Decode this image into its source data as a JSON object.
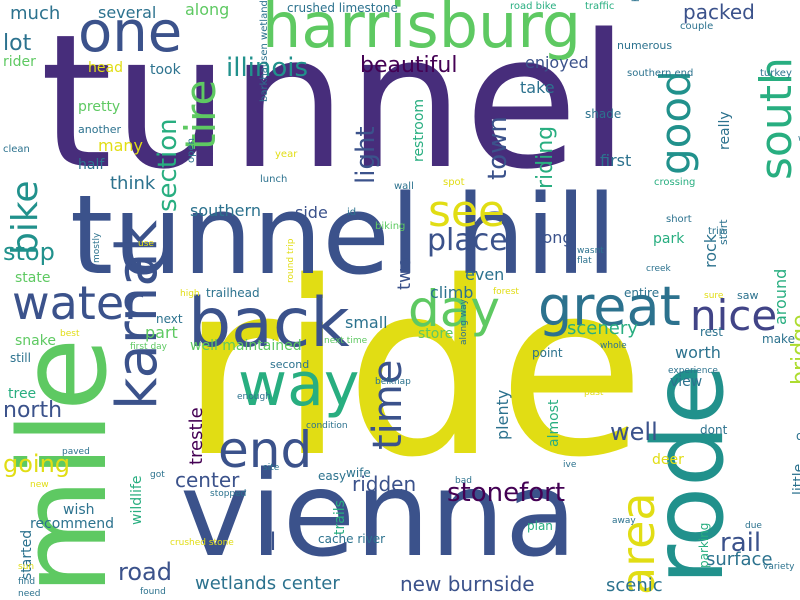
{
  "palette": {
    "dark_purple": "#472d7b",
    "indigo": "#3b528b",
    "slate_blue": "#2c728e",
    "teal": "#21918c",
    "green": "#28ae80",
    "light_green": "#5ec962",
    "yellow_green": "#addc30",
    "yellow": "#e1dd14",
    "navy": "#414487",
    "deep_purple": "#440154"
  },
  "words": [
    {
      "text": "tunnel",
      "color": "dark_purple",
      "rotated": false
    },
    {
      "text": "ride",
      "color": "yellow",
      "rotated": false
    },
    {
      "text": "vienna",
      "color": "indigo",
      "rotated": false
    },
    {
      "text": "mile",
      "color": "light_green",
      "rotated": true
    },
    {
      "text": "tunnel hill",
      "color": "indigo",
      "rotated": false
    },
    {
      "text": "rode",
      "color": "teal",
      "rotated": true
    },
    {
      "text": "harrisburg",
      "color": "light_green",
      "rotated": false
    },
    {
      "text": "karnak",
      "color": "indigo",
      "rotated": true
    },
    {
      "text": "back",
      "color": "indigo",
      "rotated": false
    },
    {
      "text": "one",
      "color": "indigo",
      "rotated": false
    },
    {
      "text": "way",
      "color": "green",
      "rotated": false
    },
    {
      "text": "end",
      "color": "indigo",
      "rotated": false
    },
    {
      "text": "water",
      "color": "indigo",
      "rotated": false
    },
    {
      "text": "great",
      "color": "slate_blue",
      "rotated": false
    },
    {
      "text": "day",
      "color": "light_green",
      "rotated": false
    },
    {
      "text": "see",
      "color": "yellow",
      "rotated": false
    },
    {
      "text": "time",
      "color": "indigo",
      "rotated": true
    },
    {
      "text": "south",
      "color": "green",
      "rotated": true
    },
    {
      "text": "good",
      "color": "teal",
      "rotated": true
    },
    {
      "text": "area",
      "color": "yellow",
      "rotated": true
    },
    {
      "text": "nice",
      "color": "navy",
      "rotated": false
    },
    {
      "text": "tire",
      "color": "light_green",
      "rotated": true
    },
    {
      "text": "bike",
      "color": "teal",
      "rotated": true
    },
    {
      "text": "place",
      "color": "indigo",
      "rotated": false
    },
    {
      "text": "illinois",
      "color": "teal",
      "rotated": false
    },
    {
      "text": "beautiful",
      "color": "deep_purple",
      "rotated": false
    },
    {
      "text": "packed",
      "color": "indigo",
      "rotated": false
    },
    {
      "text": "stonefort",
      "color": "deep_purple",
      "rotated": false
    },
    {
      "text": "rail",
      "color": "indigo",
      "rotated": false
    },
    {
      "text": "road",
      "color": "indigo",
      "rotated": false
    },
    {
      "text": "going",
      "color": "yellow",
      "rotated": false
    },
    {
      "text": "well",
      "color": "indigo",
      "rotated": false
    },
    {
      "text": "stop",
      "color": "teal",
      "rotated": false
    },
    {
      "text": "north",
      "color": "indigo",
      "rotated": false
    },
    {
      "text": "new burnside",
      "color": "indigo",
      "rotated": false
    },
    {
      "text": "wetlands center",
      "color": "slate_blue",
      "rotated": false
    },
    {
      "text": "center",
      "color": "indigo",
      "rotated": false
    },
    {
      "text": "ridden",
      "color": "indigo",
      "rotated": false
    },
    {
      "text": "town",
      "color": "indigo",
      "rotated": true
    },
    {
      "text": "section",
      "color": "green",
      "rotated": true
    },
    {
      "text": "light",
      "color": "indigo",
      "rotated": true
    },
    {
      "text": "bridge",
      "color": "yellow_green",
      "rotated": true
    },
    {
      "text": "lot",
      "color": "slate_blue",
      "rotated": false
    },
    {
      "text": "much",
      "color": "slate_blue",
      "rotated": false
    },
    {
      "text": "several",
      "color": "slate_blue",
      "rotated": false
    },
    {
      "text": "along",
      "color": "light_green",
      "rotated": false
    },
    {
      "text": "crushed limestone",
      "color": "slate_blue",
      "rotated": false
    },
    {
      "text": "road bike",
      "color": "green",
      "rotated": false
    },
    {
      "text": "traffic",
      "color": "green",
      "rotated": false
    },
    {
      "text": "rider",
      "color": "light_green",
      "rotated": false
    },
    {
      "text": "head",
      "color": "yellow",
      "rotated": false
    },
    {
      "text": "took",
      "color": "slate_blue",
      "rotated": false
    },
    {
      "text": "enjoyed",
      "color": "indigo",
      "rotated": false
    },
    {
      "text": "restroom",
      "color": "green",
      "rotated": true
    },
    {
      "text": "riding",
      "color": "green",
      "rotated": true
    },
    {
      "text": "take",
      "color": "slate_blue",
      "rotated": false
    },
    {
      "text": "shade",
      "color": "slate_blue",
      "rotated": false
    },
    {
      "text": "pretty",
      "color": "light_green",
      "rotated": false
    },
    {
      "text": "another",
      "color": "slate_blue",
      "rotated": false
    },
    {
      "text": "many",
      "color": "yellow",
      "rotated": false
    },
    {
      "text": "half",
      "color": "slate_blue",
      "rotated": false
    },
    {
      "text": "first",
      "color": "slate_blue",
      "rotated": false
    },
    {
      "text": "really",
      "color": "slate_blue",
      "rotated": true
    },
    {
      "text": "think",
      "color": "slate_blue",
      "rotated": false
    },
    {
      "text": "southern",
      "color": "slate_blue",
      "rotated": false
    },
    {
      "text": "side",
      "color": "indigo",
      "rotated": false
    },
    {
      "text": "long",
      "color": "indigo",
      "rotated": false
    },
    {
      "text": "two",
      "color": "indigo",
      "rotated": true
    },
    {
      "text": "climb",
      "color": "slate_blue",
      "rotated": false
    },
    {
      "text": "even",
      "color": "slate_blue",
      "rotated": false
    },
    {
      "text": "park",
      "color": "green",
      "rotated": false
    },
    {
      "text": "rock",
      "color": "slate_blue",
      "rotated": true
    },
    {
      "text": "around",
      "color": "green",
      "rotated": true
    },
    {
      "text": "state",
      "color": "light_green",
      "rotated": false
    },
    {
      "text": "small",
      "color": "slate_blue",
      "rotated": false
    },
    {
      "text": "part",
      "color": "light_green",
      "rotated": false
    },
    {
      "text": "scenery",
      "color": "green",
      "rotated": false
    },
    {
      "text": "snake",
      "color": "light_green",
      "rotated": false
    },
    {
      "text": "trestle",
      "color": "deep_purple",
      "rotated": true
    },
    {
      "text": "plenty",
      "color": "slate_blue",
      "rotated": true
    },
    {
      "text": "worth",
      "color": "slate_blue",
      "rotated": false
    },
    {
      "text": "view",
      "color": "slate_blue",
      "rotated": false
    },
    {
      "text": "tree",
      "color": "green",
      "rotated": false
    },
    {
      "text": "deer",
      "color": "yellow",
      "rotated": false
    },
    {
      "text": "little",
      "color": "slate_blue",
      "rotated": true
    },
    {
      "text": "il",
      "color": "indigo",
      "rotated": false
    },
    {
      "text": "surface",
      "color": "slate_blue",
      "rotated": false
    },
    {
      "text": "scenic",
      "color": "slate_blue",
      "rotated": false
    },
    {
      "text": "started",
      "color": "slate_blue",
      "rotated": true
    },
    {
      "text": "recommend",
      "color": "slate_blue",
      "rotated": false
    },
    {
      "text": "wish",
      "color": "slate_blue",
      "rotated": false
    },
    {
      "text": "wildlife",
      "color": "green",
      "rotated": true
    },
    {
      "text": "trails",
      "color": "green",
      "rotated": true
    },
    {
      "text": "almost",
      "color": "green",
      "rotated": true
    },
    {
      "text": "parking",
      "color": "green",
      "rotated": true
    },
    {
      "text": "store",
      "color": "light_green",
      "rotated": false
    },
    {
      "text": "well maintained",
      "color": "light_green",
      "rotated": false
    },
    {
      "text": "next",
      "color": "slate_blue",
      "rotated": false
    },
    {
      "text": "trailhead",
      "color": "slate_blue",
      "rotated": false
    },
    {
      "text": "still",
      "color": "slate_blue",
      "rotated": false
    },
    {
      "text": "second",
      "color": "slate_blue",
      "rotated": false
    },
    {
      "text": "wife",
      "color": "slate_blue",
      "rotated": false
    },
    {
      "text": "cache river",
      "color": "slate_blue",
      "rotated": false
    },
    {
      "text": "easy",
      "color": "slate_blue",
      "rotated": false
    },
    {
      "text": "plan",
      "color": "green",
      "rotated": false
    },
    {
      "text": "point",
      "color": "slate_blue",
      "rotated": false
    },
    {
      "text": "entire",
      "color": "slate_blue",
      "rotated": false
    },
    {
      "text": "make",
      "color": "slate_blue",
      "rotated": false
    },
    {
      "text": "rest",
      "color": "slate_blue",
      "rotated": false
    },
    {
      "text": "dont",
      "color": "slate_blue",
      "rotated": false
    },
    {
      "text": "old",
      "color": "slate_blue",
      "rotated": false
    },
    {
      "text": "start",
      "color": "slate_blue",
      "rotated": true
    },
    {
      "text": "saw",
      "color": "slate_blue",
      "rotated": false
    },
    {
      "text": "numerous",
      "color": "slate_blue",
      "rotated": false
    },
    {
      "text": "hour",
      "color": "slate_blue",
      "rotated": true
    },
    {
      "text": "couple",
      "color": "slate_blue",
      "rotated": false
    },
    {
      "text": "southern end",
      "color": "slate_blue",
      "rotated": false
    },
    {
      "text": "turkey",
      "color": "slate_blue",
      "rotated": false
    },
    {
      "text": "want",
      "color": "slate_blue",
      "rotated": false
    },
    {
      "text": "barkhausen wetlands",
      "color": "slate_blue",
      "rotated": true
    },
    {
      "text": "year",
      "color": "yellow",
      "rotated": false
    },
    {
      "text": "open",
      "color": "slate_blue",
      "rotated": true
    },
    {
      "text": "clean",
      "color": "slate_blue",
      "rotated": false
    },
    {
      "text": "lunch",
      "color": "slate_blue",
      "rotated": false
    },
    {
      "text": "wall",
      "color": "slate_blue",
      "rotated": false
    },
    {
      "text": "spot",
      "color": "yellow",
      "rotated": false
    },
    {
      "text": "crossing",
      "color": "green",
      "rotated": false
    },
    {
      "text": "id",
      "color": "slate_blue",
      "rotated": false
    },
    {
      "text": "biking",
      "color": "light_green",
      "rotated": false
    },
    {
      "text": "short",
      "color": "slate_blue",
      "rotated": false
    },
    {
      "text": "trip",
      "color": "slate_blue",
      "rotated": false
    },
    {
      "text": "use",
      "color": "yellow",
      "rotated": false
    },
    {
      "text": "high",
      "color": "yellow",
      "rotated": false
    },
    {
      "text": "round trip",
      "color": "yellow",
      "rotated": true
    },
    {
      "text": "mostly",
      "color": "slate_blue",
      "rotated": true
    },
    {
      "text": "wasnt",
      "color": "slate_blue",
      "rotated": false
    },
    {
      "text": "flat",
      "color": "slate_blue",
      "rotated": false
    },
    {
      "text": "creek",
      "color": "slate_blue",
      "rotated": false
    },
    {
      "text": "sure",
      "color": "yellow",
      "rotated": false
    },
    {
      "text": "forest",
      "color": "yellow",
      "rotated": false
    },
    {
      "text": "best",
      "color": "yellow",
      "rotated": false
    },
    {
      "text": "first day",
      "color": "light_green",
      "rotated": false
    },
    {
      "text": "next time",
      "color": "light_green",
      "rotated": false
    },
    {
      "text": "belknap",
      "color": "slate_blue",
      "rotated": false
    },
    {
      "text": "along way",
      "color": "slate_blue",
      "rotated": true
    },
    {
      "text": "whole",
      "color": "slate_blue",
      "rotated": false
    },
    {
      "text": "experience",
      "color": "slate_blue",
      "rotated": false
    },
    {
      "text": "past",
      "color": "yellow",
      "rotated": false
    },
    {
      "text": "enough",
      "color": "slate_blue",
      "rotated": false
    },
    {
      "text": "condition",
      "color": "slate_blue",
      "rotated": false
    },
    {
      "text": "bad",
      "color": "slate_blue",
      "rotated": false
    },
    {
      "text": "ive",
      "color": "slate_blue",
      "rotated": false
    },
    {
      "text": "paved",
      "color": "slate_blue",
      "rotated": false
    },
    {
      "text": "got",
      "color": "slate_blue",
      "rotated": false
    },
    {
      "text": "site",
      "color": "slate_blue",
      "rotated": false
    },
    {
      "text": "new",
      "color": "yellow",
      "rotated": false
    },
    {
      "text": "stopped",
      "color": "slate_blue",
      "rotated": false
    },
    {
      "text": "crushed stone",
      "color": "yellow",
      "rotated": false
    },
    {
      "text": "away",
      "color": "slate_blue",
      "rotated": false
    },
    {
      "text": "variety",
      "color": "slate_blue",
      "rotated": false
    },
    {
      "text": "due",
      "color": "slate_blue",
      "rotated": false
    },
    {
      "text": "sun",
      "color": "yellow",
      "rotated": false
    },
    {
      "text": "find",
      "color": "slate_blue",
      "rotated": false
    },
    {
      "text": "need",
      "color": "slate_blue",
      "rotated": false
    },
    {
      "text": "found",
      "color": "slate_blue",
      "rotated": false
    },
    {
      "text": "although",
      "color": "slate_blue",
      "rotated": false
    }
  ]
}
